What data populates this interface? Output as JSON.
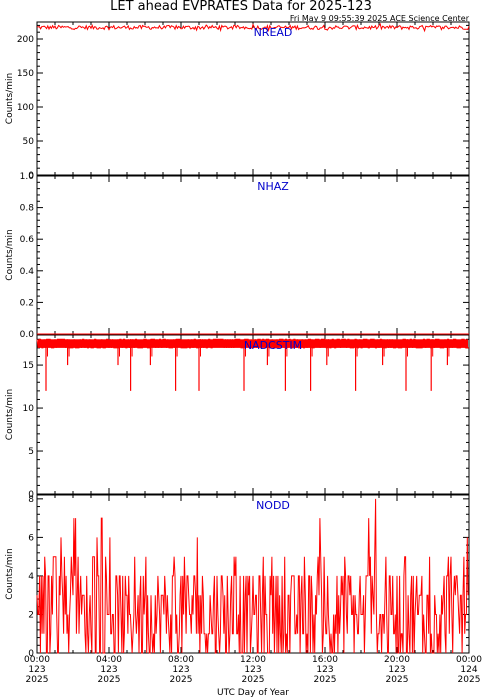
{
  "header": {
    "title": "LET ahead EVPRATES Data for 2025-123",
    "timestamp": "Fri May  9 09:55:39 2025 ACE Science Center"
  },
  "colors": {
    "series": "#ff0000",
    "series_label": "#0000cc",
    "axis": "#000000"
  },
  "chart_data": [
    {
      "type": "line",
      "series": [
        {
          "name": "NREAD",
          "baseline": 217,
          "range": [
            212,
            222
          ]
        }
      ],
      "ylabel": "Counts/min",
      "ylim": [
        0,
        225
      ],
      "yticks": [
        0,
        50,
        100,
        150,
        200
      ],
      "ytick_labels": [
        "0",
        "50",
        "100",
        "150",
        "200"
      ]
    },
    {
      "type": "line",
      "series": [
        {
          "name": "NHAZ",
          "baseline": 0
        }
      ],
      "ylabel": "Counts/min",
      "ylim": [
        0,
        1
      ],
      "yticks": [
        0,
        0.2,
        0.4,
        0.6,
        0.8,
        1.0
      ],
      "ytick_labels": [
        "0.0",
        "0.2",
        "0.4",
        "0.6",
        "0.8",
        "1.0"
      ]
    },
    {
      "type": "line",
      "series": [
        {
          "name": "NADCSTIM",
          "baseline": 18,
          "range": [
            17,
            18
          ],
          "dips": [
            {
              "hour": 0.5,
              "value": 12
            },
            {
              "hour": 1.7,
              "value": 15
            },
            {
              "hour": 4.5,
              "value": 15
            },
            {
              "hour": 5.2,
              "value": 12
            },
            {
              "hour": 6.3,
              "value": 15
            },
            {
              "hour": 7.7,
              "value": 12
            },
            {
              "hour": 9.0,
              "value": 12
            },
            {
              "hour": 11.5,
              "value": 12
            },
            {
              "hour": 12.8,
              "value": 15
            },
            {
              "hour": 13.8,
              "value": 12
            },
            {
              "hour": 15.2,
              "value": 12
            },
            {
              "hour": 16.1,
              "value": 15
            },
            {
              "hour": 17.7,
              "value": 12
            },
            {
              "hour": 19.2,
              "value": 15
            },
            {
              "hour": 20.5,
              "value": 12
            },
            {
              "hour": 21.9,
              "value": 12
            },
            {
              "hour": 22.8,
              "value": 15
            }
          ]
        }
      ],
      "ylabel": "Counts/min",
      "ylim": [
        0,
        18.5
      ],
      "yticks": [
        0,
        5,
        10,
        15
      ],
      "ytick_labels": [
        "0",
        "5",
        "10",
        "15"
      ]
    },
    {
      "type": "line",
      "series": [
        {
          "name": "NODD",
          "range": [
            0,
            8
          ],
          "typical_range": [
            0,
            4
          ]
        }
      ],
      "ylabel": "Counts/min",
      "ylim": [
        0,
        8.2
      ],
      "yticks": [
        0,
        2,
        4,
        6,
        8
      ],
      "ytick_labels": [
        "0",
        "2",
        "4",
        "6",
        "8"
      ]
    }
  ],
  "x_axis": {
    "label": "UTC Day of Year",
    "range_hours": [
      0,
      24
    ],
    "ticks": [
      {
        "hour": 0,
        "time": "00:00",
        "doy": "123",
        "year": "2025"
      },
      {
        "hour": 4,
        "time": "04:00",
        "doy": "123",
        "year": "2025"
      },
      {
        "hour": 8,
        "time": "08:00",
        "doy": "123",
        "year": "2025"
      },
      {
        "hour": 12,
        "time": "12:00",
        "doy": "123",
        "year": "2025"
      },
      {
        "hour": 16,
        "time": "16:00",
        "doy": "123",
        "year": "2025"
      },
      {
        "hour": 20,
        "time": "20:00",
        "doy": "123",
        "year": "2025"
      },
      {
        "hour": 24,
        "time": "00:00",
        "doy": "124",
        "year": "2025"
      }
    ],
    "minor_tick_hours": 1
  }
}
